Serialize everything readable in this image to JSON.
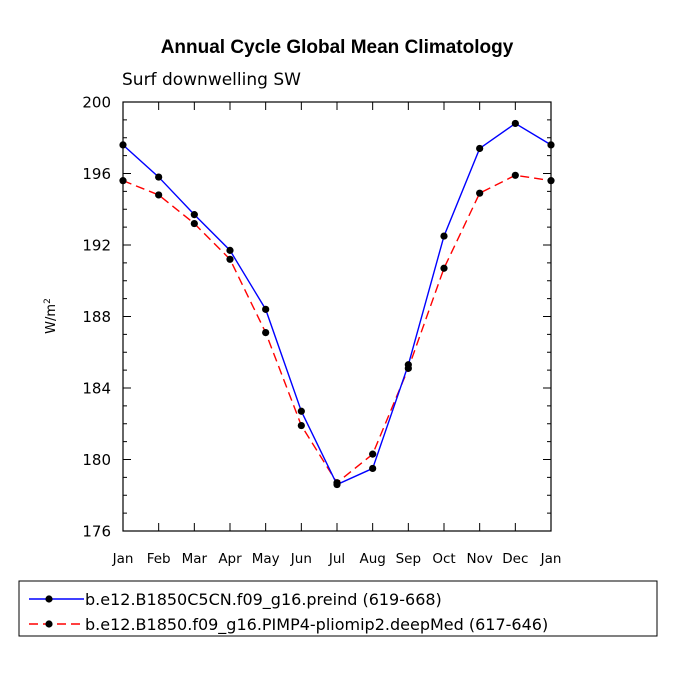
{
  "chart_data": {
    "type": "line",
    "title": "Annual Cycle Global Mean Climatology",
    "subtitle": "Surf downwelling SW",
    "ylabel": "W/m",
    "ylabel_superscript": "2",
    "xlabel": "",
    "categories": [
      "Jan",
      "Feb",
      "Mar",
      "Apr",
      "May",
      "Jun",
      "Jul",
      "Aug",
      "Sep",
      "Oct",
      "Nov",
      "Dec",
      "Jan"
    ],
    "ylim": [
      176,
      200
    ],
    "yticks": [
      176,
      180,
      184,
      188,
      192,
      196,
      200
    ],
    "series": [
      {
        "name": "b.e12.B1850C5CN.f09_g16.preind (619-668)",
        "color": "#0000ff",
        "dash": "solid",
        "values": [
          197.6,
          195.8,
          193.7,
          191.7,
          188.4,
          182.7,
          178.6,
          179.5,
          185.3,
          192.5,
          197.4,
          198.8,
          197.6
        ]
      },
      {
        "name": "b.e12.B1850.f09_g16.PIMP4-pliomip2.deepMed (617-646)",
        "color": "#ff0000",
        "dash": "dashed",
        "values": [
          195.6,
          194.8,
          193.2,
          191.2,
          187.1,
          181.9,
          178.7,
          180.3,
          185.1,
          190.7,
          194.9,
          195.9,
          195.6
        ]
      }
    ],
    "legend_position": "bottom"
  }
}
